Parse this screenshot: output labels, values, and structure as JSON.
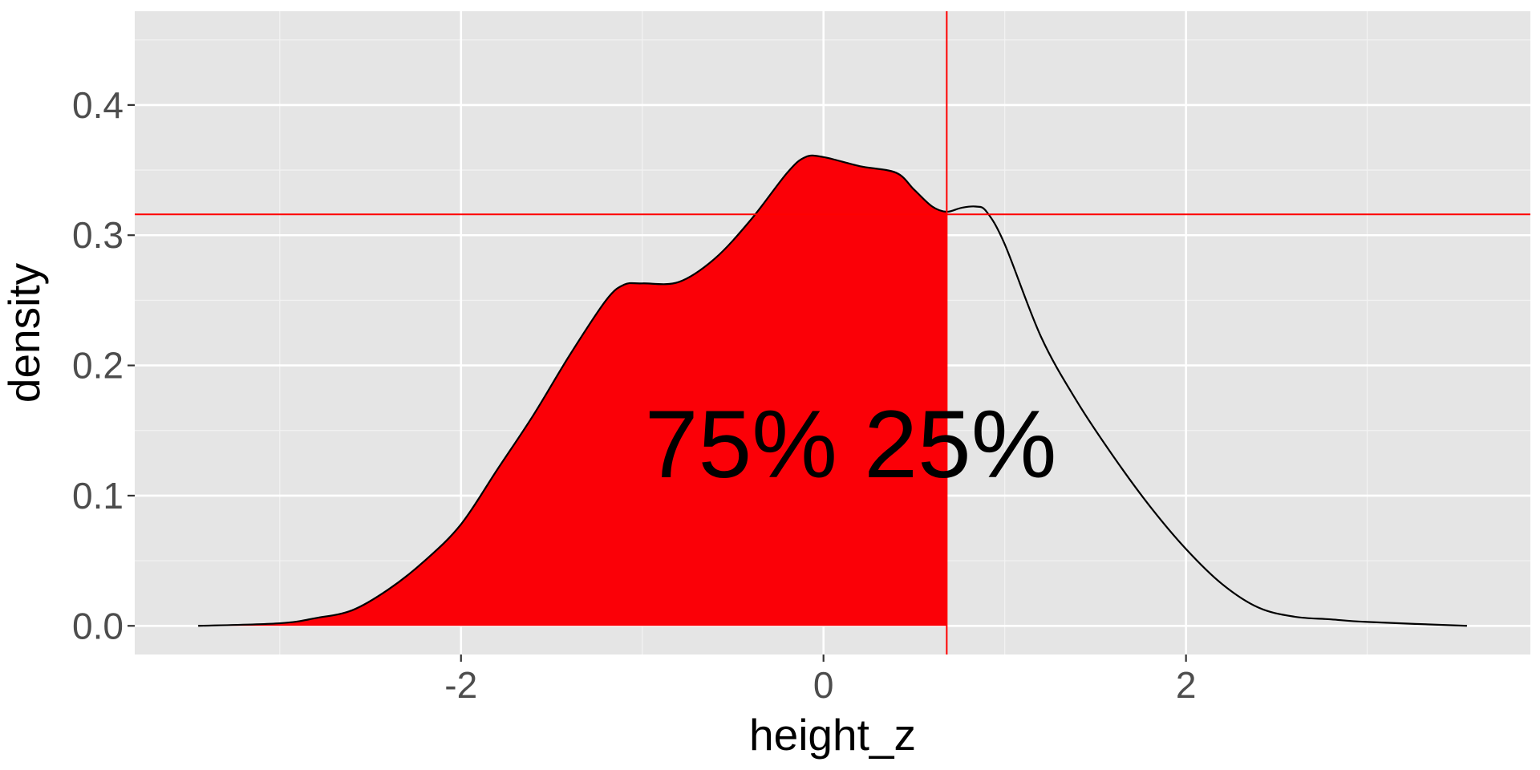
{
  "chart_data": {
    "type": "area",
    "title": "",
    "xlabel": "height_z",
    "ylabel": "density",
    "xlim": [
      -3.8,
      3.9
    ],
    "ylim": [
      -0.022,
      0.472
    ],
    "x_ticks": [
      -2,
      0,
      2
    ],
    "x_tick_labels": [
      "-2",
      "0",
      "2"
    ],
    "y_ticks": [
      0,
      0.1,
      0.2,
      0.3,
      0.4
    ],
    "y_tick_labels": [
      "0.0",
      "0.1",
      "0.2",
      "0.3",
      "0.4"
    ],
    "grid": true,
    "series": [
      {
        "x": [
          -3.45,
          -3.0,
          -2.8,
          -2.6,
          -2.4,
          -2.2,
          -2.0,
          -1.8,
          -1.6,
          -1.4,
          -1.2,
          -1.1,
          -1.0,
          -0.8,
          -0.6,
          -0.4,
          -0.2,
          -0.1,
          0.0,
          0.2,
          0.4,
          0.5,
          0.6,
          0.68,
          0.76,
          0.84,
          0.9,
          1.0,
          1.2,
          1.4,
          1.6,
          1.8,
          2.0,
          2.2,
          2.4,
          2.6,
          2.8,
          3.0,
          3.55
        ],
        "y": [
          0.0,
          0.002,
          0.006,
          0.012,
          0.028,
          0.05,
          0.078,
          0.12,
          0.162,
          0.208,
          0.25,
          0.262,
          0.263,
          0.264,
          0.282,
          0.312,
          0.348,
          0.36,
          0.36,
          0.353,
          0.348,
          0.335,
          0.322,
          0.318,
          0.321,
          0.322,
          0.318,
          0.293,
          0.222,
          0.172,
          0.13,
          0.092,
          0.059,
          0.032,
          0.014,
          0.007,
          0.005,
          0.003,
          0.0
        ]
      }
    ],
    "cutoff_x": 0.68,
    "cutoff_y": 0.316,
    "fill_color": "#fb0007",
    "line_color": "#000000",
    "reference_line_color": "#ff0000",
    "annotations": [
      {
        "text": "75% 25%",
        "x": 0.15,
        "y": 0.14
      }
    ]
  }
}
